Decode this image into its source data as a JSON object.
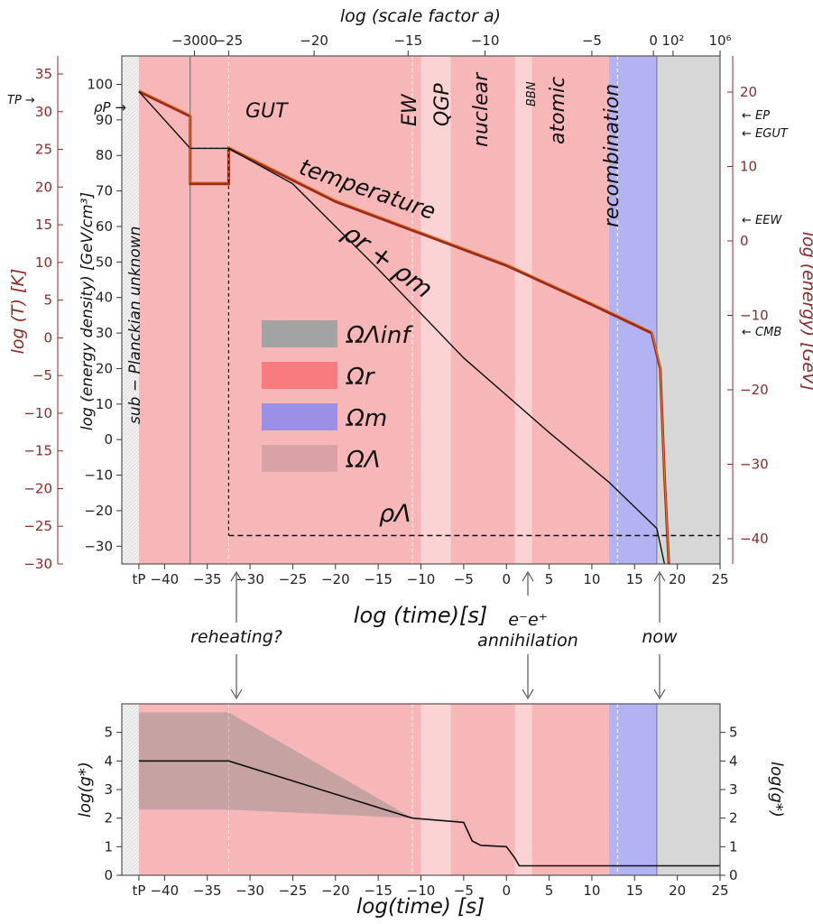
{
  "chart_data": [
    {
      "type": "line",
      "panel": "main",
      "xlabel": "log (time)[s]",
      "x2label": "log (scale factor a)",
      "ylabel_left_outer": "log (T) [K]",
      "ylabel_left_inner": "log (energy density) [GeV/cm³]",
      "ylabel_right": "log (energy) [GeV]",
      "xlim": [
        -45,
        25
      ],
      "ylim": [
        -35,
        108
      ],
      "x_ticks": [
        "tP",
        "−40",
        "−35",
        "−30",
        "−25",
        "−20",
        "−15",
        "−10",
        "−5",
        "0",
        "5",
        "10",
        "15",
        "20",
        "25"
      ],
      "x2_ticks": [
        "−3000",
        "−25",
        "−20",
        "−15",
        "−10",
        "−5",
        "0",
        "10²",
        "10⁶"
      ],
      "y_ticks": [
        "−30",
        "−20",
        "−10",
        "0",
        "10",
        "20",
        "30",
        "40",
        "50",
        "60",
        "70",
        "80",
        "90",
        "100"
      ],
      "ylabel_T_ticks": [
        "35",
        "30",
        "25",
        "20",
        "15",
        "10",
        "5",
        "0",
        "−5",
        "−10",
        "−15",
        "−20",
        "−25",
        "−30"
      ],
      "energy_ticks": [
        "20",
        "10",
        "0",
        "−10",
        "−20",
        "−30",
        "−40"
      ],
      "epochs": [
        {
          "name": "sub-Planck",
          "from": -45,
          "to": -43,
          "color": "#eeeeee"
        },
        {
          "name": "inflation",
          "from": -37,
          "to": -32.5,
          "color": "#a3a3a3"
        },
        {
          "name": "radiation",
          "from": -43,
          "to": 12,
          "color": "#f7b7b9"
        },
        {
          "name": "matter",
          "from": 12,
          "to": 17.6,
          "color": "#b3b3f3"
        },
        {
          "name": "dark energy",
          "from": 17.6,
          "to": 25,
          "color": "#d7d7d7"
        }
      ],
      "epoch_labels": [
        "sub − Planckian unknown",
        "GUT",
        "EW",
        "QGP",
        "nuclear",
        "BBN",
        "atomic",
        "recombination"
      ],
      "series": [
        {
          "name": "temperature",
          "color": "#a02a20",
          "x": [
            -43,
            -37,
            -37,
            -32.5,
            -32.5,
            -20,
            -10,
            0,
            10,
            17,
            18,
            18.5,
            19
          ],
          "y": [
            98,
            91,
            72,
            72,
            82,
            67,
            58,
            49,
            38,
            30,
            20,
            -10,
            -35
          ]
        },
        {
          "name": "ρr + ρm",
          "color": "#111111",
          "x": [
            -43,
            -37,
            -32.5,
            -25,
            -15,
            -5,
            5,
            12,
            17.6,
            18.5
          ],
          "y": [
            98,
            82,
            82,
            72,
            48,
            23,
            2,
            -12,
            -25,
            -35
          ]
        },
        {
          "name": "ρΛ",
          "color": "#111111",
          "dashed": true,
          "x": [
            -32.5,
            25
          ],
          "y": [
            -27,
            -27
          ]
        }
      ],
      "markers_right": [
        "EP",
        "EGUT",
        "EEW",
        "CMB"
      ],
      "markers_left": [
        "TP",
        "ρP"
      ],
      "legend": [
        {
          "label": "ΩΛinf",
          "color": "#a3a3a3"
        },
        {
          "label": "Ωr",
          "color": "#f77b7f"
        },
        {
          "label": "Ωm",
          "color": "#9b8fe6"
        },
        {
          "label": "ΩΛ",
          "color": "#d9a3a5"
        }
      ]
    },
    {
      "type": "line",
      "panel": "bottom",
      "xlabel": "log(time) [s]",
      "ylabel": "log(g*)",
      "xlim": [
        -45,
        25
      ],
      "ylim": [
        0,
        6
      ],
      "x_ticks": [
        "tP",
        "−40",
        "−35",
        "−30",
        "−25",
        "−20",
        "−15",
        "−10",
        "−5",
        "0",
        "5",
        "10",
        "15",
        "20",
        "25"
      ],
      "y_ticks": [
        "0",
        "1",
        "2",
        "3",
        "4",
        "5"
      ],
      "series": [
        {
          "name": "g*",
          "color": "#111111",
          "x": [
            -43,
            -32.5,
            -11,
            -7,
            -5,
            -4,
            -3,
            0,
            1,
            1.5,
            25
          ],
          "y": [
            4.0,
            4.0,
            2.0,
            1.9,
            1.85,
            1.2,
            1.05,
            1.0,
            0.6,
            0.33,
            0.33
          ]
        }
      ],
      "uncertainty_band": {
        "x": [
          -43,
          -32.5,
          -11
        ],
        "upper": [
          5.7,
          5.7,
          2.0
        ],
        "lower": [
          2.3,
          2.3,
          2.0
        ]
      }
    }
  ],
  "annotations": {
    "reheating": "reheating?",
    "annihilation_line1": "e⁻e⁺",
    "annihilation_line2": "annihilation",
    "now": "now"
  }
}
